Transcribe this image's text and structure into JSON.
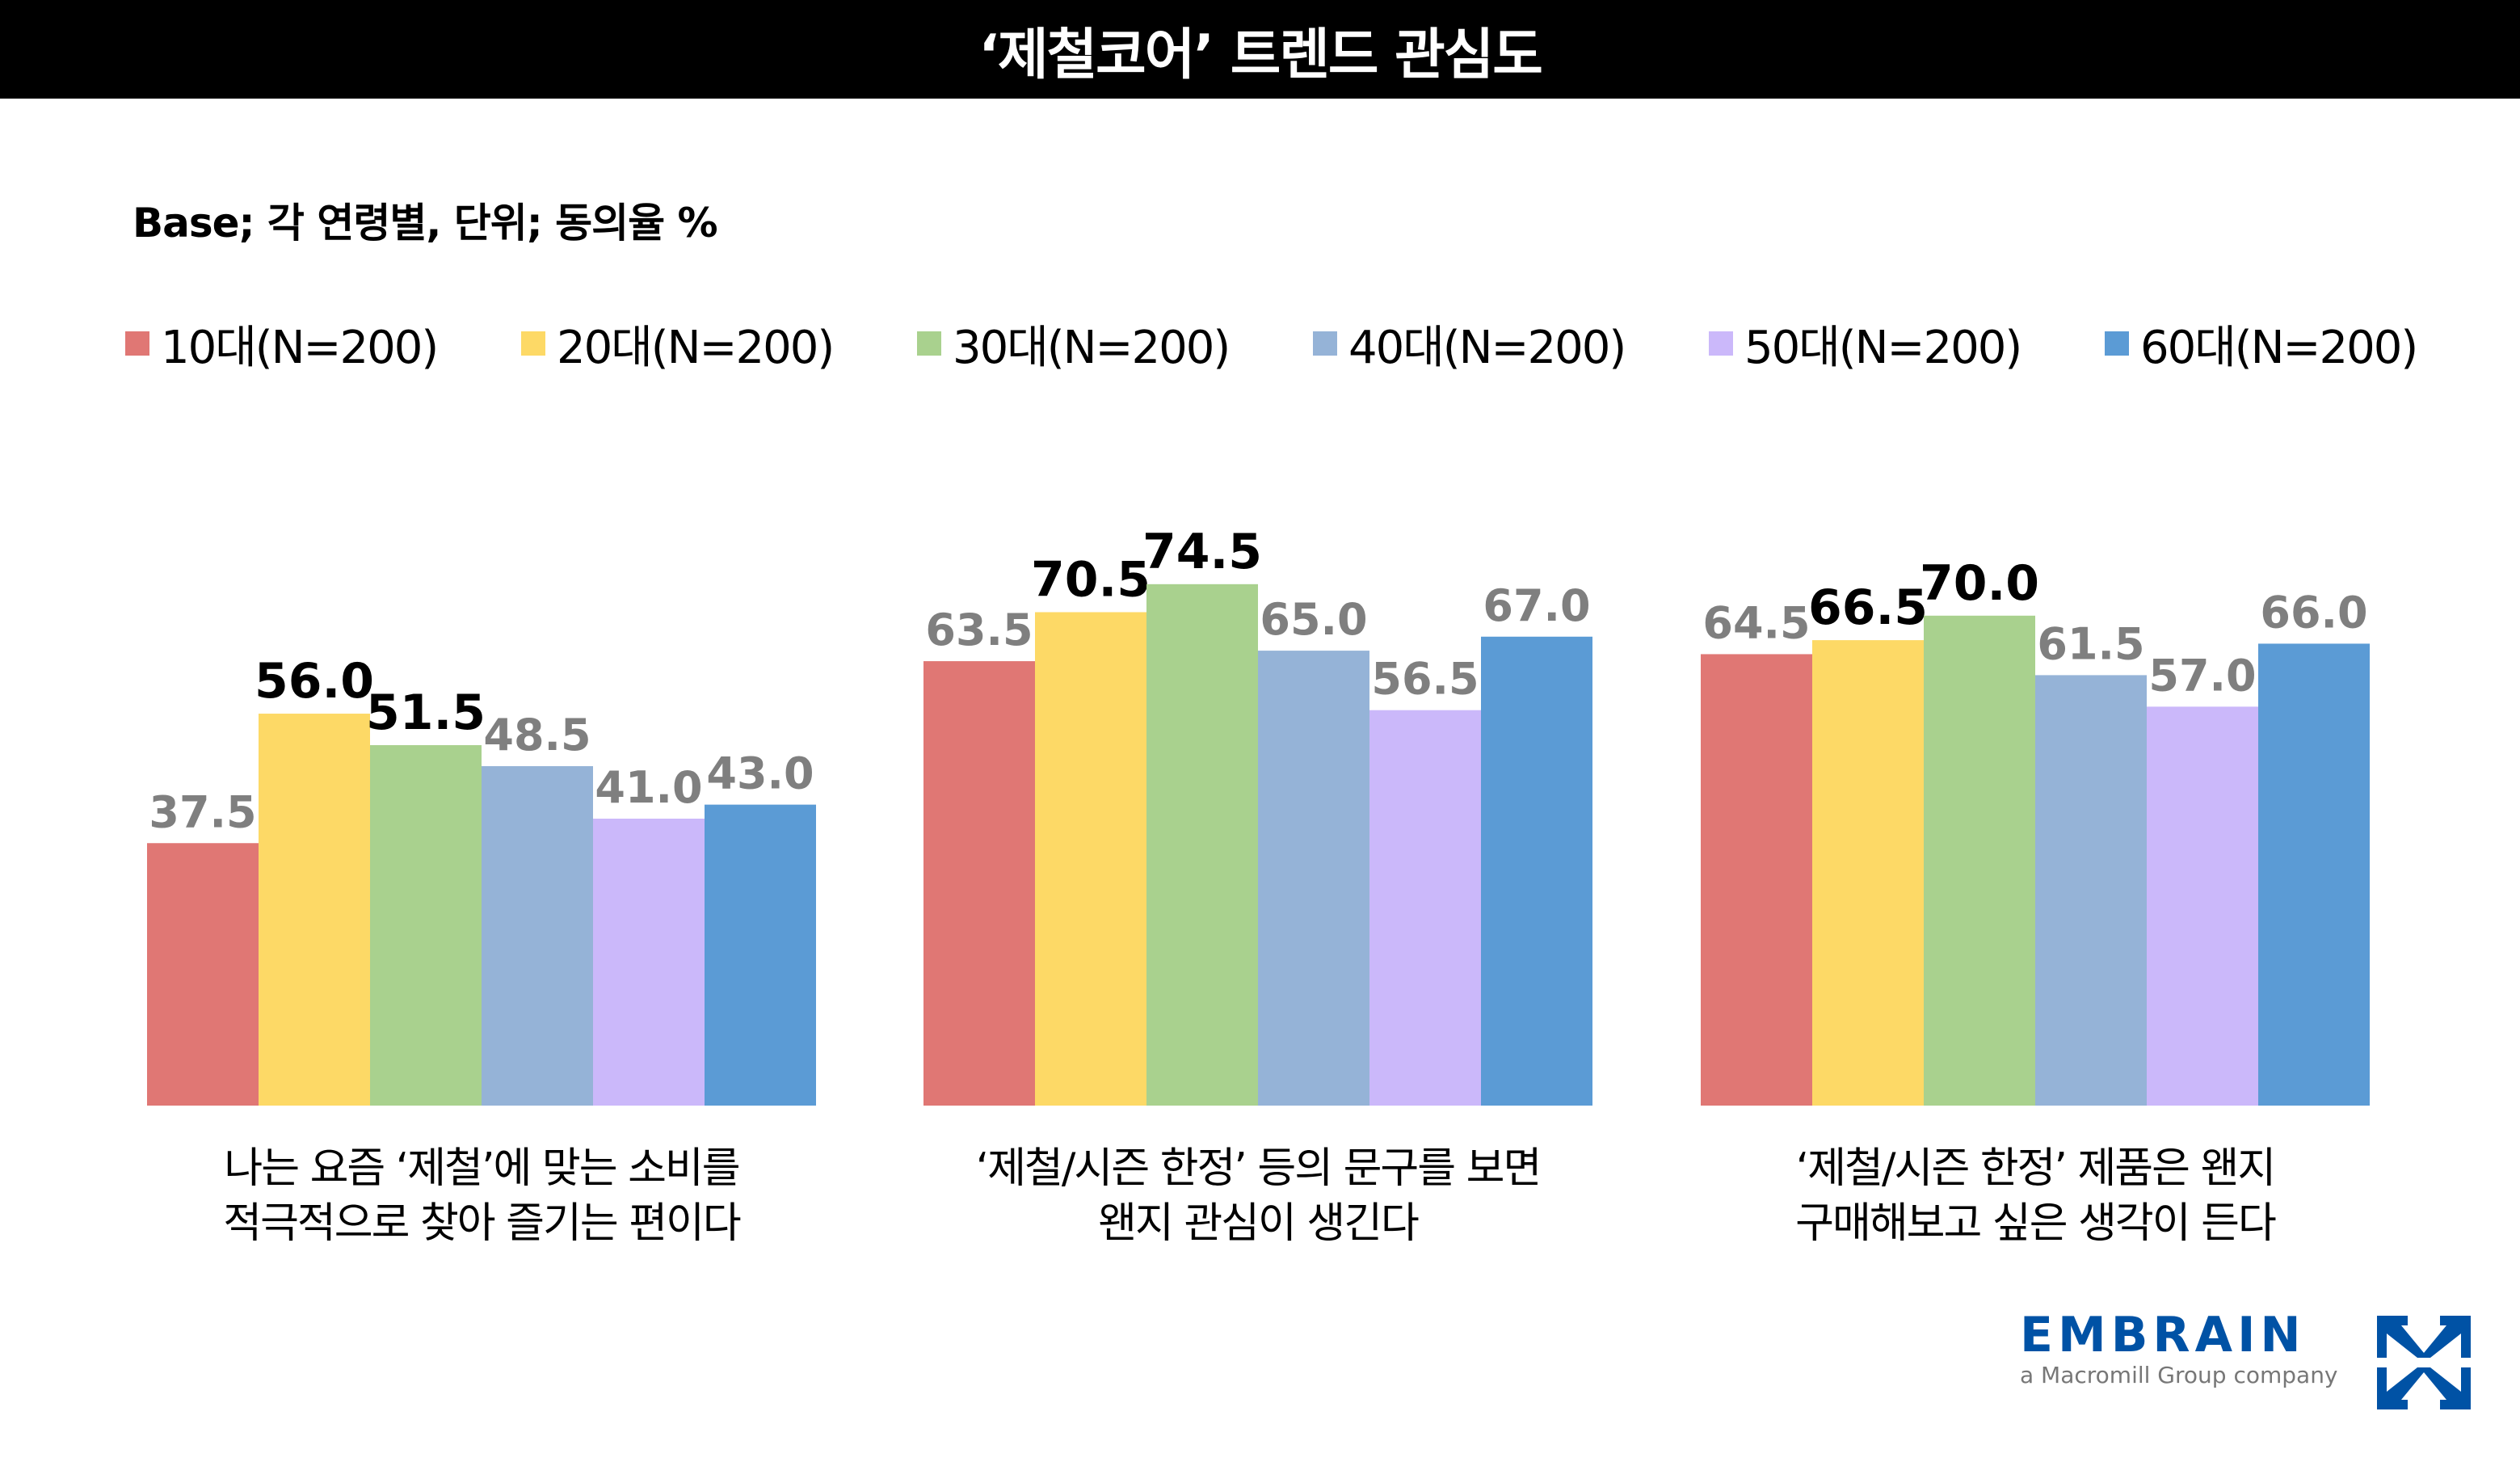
{
  "header": {
    "title": "‘제철코어’ 트렌드 관심도"
  },
  "base_note": "Base; 각 연령별, 단위; 동의율 %",
  "logo": {
    "name": "EMBRAIN",
    "tagline": "a Macromill Group company"
  },
  "chart_data": {
    "type": "bar",
    "title": "‘제철코어’ 트렌드 관심도",
    "categories": [
      [
        "나는 요즘 ‘제철’에 맞는 소비를",
        "적극적으로 찾아 즐기는 편이다"
      ],
      [
        "‘제철/시즌 한정’ 등의 문구를 보면",
        "왠지 관심이 생긴다"
      ],
      [
        "‘제철/시즌 한정’ 제품은 왠지",
        "구매해보고 싶은 생각이 든다"
      ]
    ],
    "series": [
      {
        "name": "10대(N=200)",
        "color": "#e07774",
        "values": [
          37.5,
          63.5,
          64.5
        ]
      },
      {
        "name": "20대(N=200)",
        "color": "#fdd966",
        "values": [
          56.0,
          70.5,
          66.5
        ]
      },
      {
        "name": "30대(N=200)",
        "color": "#a9d18e",
        "values": [
          51.5,
          74.5,
          70.0
        ]
      },
      {
        "name": "40대(N=200)",
        "color": "#95b3d7",
        "values": [
          48.5,
          65.0,
          61.5
        ]
      },
      {
        "name": "50대(N=200)",
        "color": "#cbb8fa",
        "values": [
          41.0,
          56.5,
          57.0
        ]
      },
      {
        "name": "60대(N=200)",
        "color": "#5b9bd5",
        "values": [
          43.0,
          67.0,
          66.0
        ]
      }
    ],
    "highlighted": [
      [
        1,
        2
      ],
      [
        1,
        2
      ],
      [
        1,
        2
      ]
    ],
    "ylim": [
      0,
      80
    ],
    "grid": false,
    "legend_position": "top",
    "label_color": "#7f7f7f",
    "highlight_color": "#000000"
  }
}
